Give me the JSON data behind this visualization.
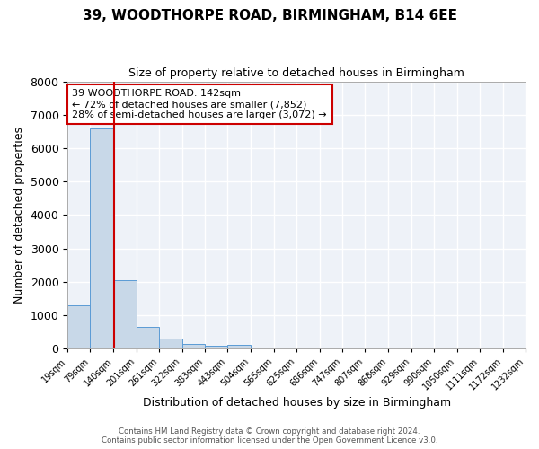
{
  "title": "39, WOODTHORPE ROAD, BIRMINGHAM, B14 6EE",
  "subtitle": "Size of property relative to detached houses in Birmingham",
  "xlabel": "Distribution of detached houses by size in Birmingham",
  "ylabel": "Number of detached properties",
  "bar_color": "#c8d8e8",
  "bar_edge_color": "#5b9bd5",
  "bg_color": "#eef2f8",
  "grid_color": "white",
  "bin_edges": [
    19,
    79,
    140,
    201,
    261,
    322,
    383,
    443,
    504,
    565,
    625,
    686,
    747,
    807,
    868,
    929,
    990,
    1050,
    1111,
    1172,
    1232
  ],
  "bin_labels": [
    "19sqm",
    "79sqm",
    "140sqm",
    "201sqm",
    "261sqm",
    "322sqm",
    "383sqm",
    "443sqm",
    "504sqm",
    "565sqm",
    "625sqm",
    "686sqm",
    "747sqm",
    "807sqm",
    "868sqm",
    "929sqm",
    "990sqm",
    "1050sqm",
    "1111sqm",
    "1172sqm",
    "1232sqm"
  ],
  "counts": [
    1300,
    6600,
    2050,
    650,
    300,
    130,
    90,
    100,
    0,
    0,
    0,
    0,
    0,
    0,
    0,
    0,
    0,
    0,
    0,
    0
  ],
  "property_size": 142,
  "property_label": "39 WOODTHORPE ROAD: 142sqm",
  "line1": "← 72% of detached houses are smaller (7,852)",
  "line2": "28% of semi-detached houses are larger (3,072) →",
  "vline_color": "#cc0000",
  "annotation_box_color": "#ffffff",
  "annotation_box_edge": "#cc0000",
  "ylim": [
    0,
    8000
  ],
  "yticks": [
    0,
    1000,
    2000,
    3000,
    4000,
    5000,
    6000,
    7000,
    8000
  ],
  "footer1": "Contains HM Land Registry data © Crown copyright and database right 2024.",
  "footer2": "Contains public sector information licensed under the Open Government Licence v3.0."
}
